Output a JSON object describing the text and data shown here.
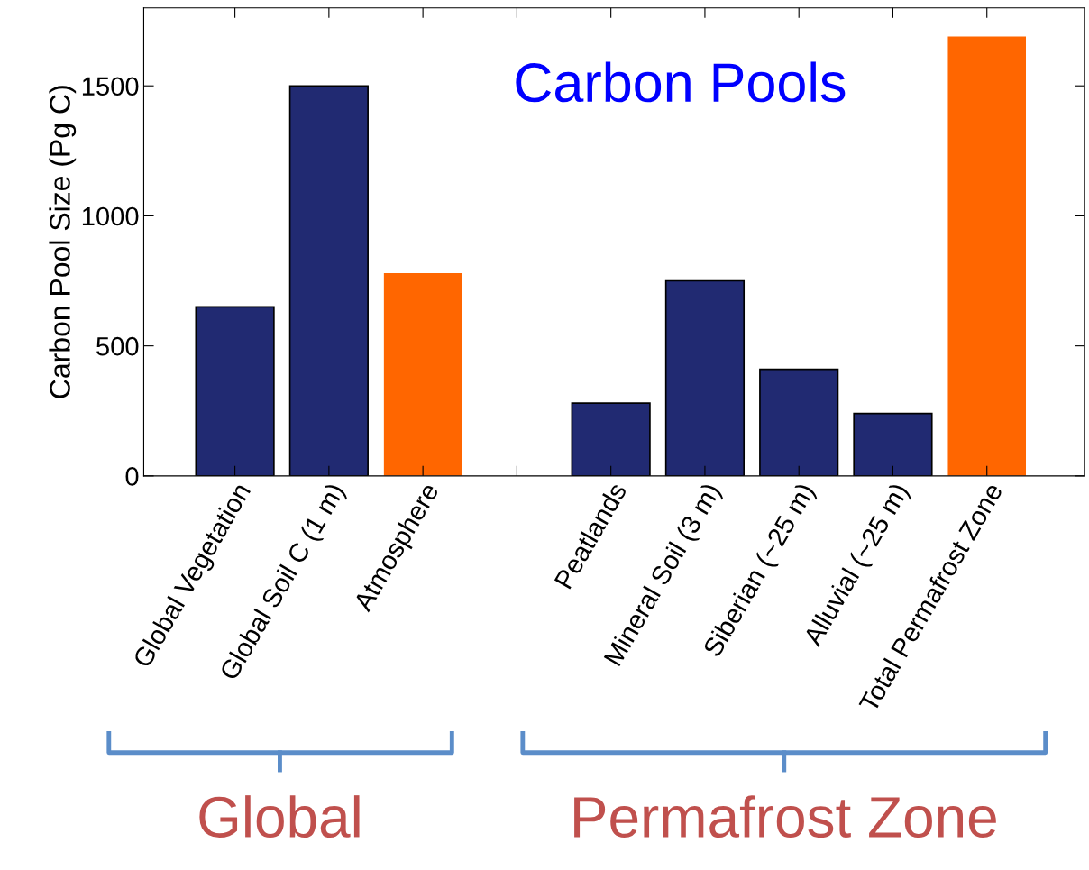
{
  "chart_data": {
    "type": "bar",
    "ylabel": "Carbon Pool Size (Pg C)",
    "categories": [
      "Global Vegetation",
      "Global Soil C (1 m)",
      "Atmosphere",
      null,
      "Peatlands",
      "Mineral Soil (3 m)",
      "Siberian (~25 m)",
      "Alluvial (~25 m)",
      "Total Permafrost Zone"
    ],
    "values": [
      650,
      1500,
      780,
      null,
      280,
      750,
      410,
      240,
      1690
    ],
    "colors": [
      "#212a72",
      "#212a72",
      "#ff6600",
      null,
      "#212a72",
      "#212a72",
      "#212a72",
      "#212a72",
      "#ff6600"
    ],
    "ylim": [
      0,
      1800
    ],
    "yticks": [
      0,
      500,
      1000,
      1500
    ],
    "grid": false,
    "legend": false,
    "annotations": [
      "Carbon Pools",
      "Global",
      "Permafrost Zone"
    ]
  }
}
